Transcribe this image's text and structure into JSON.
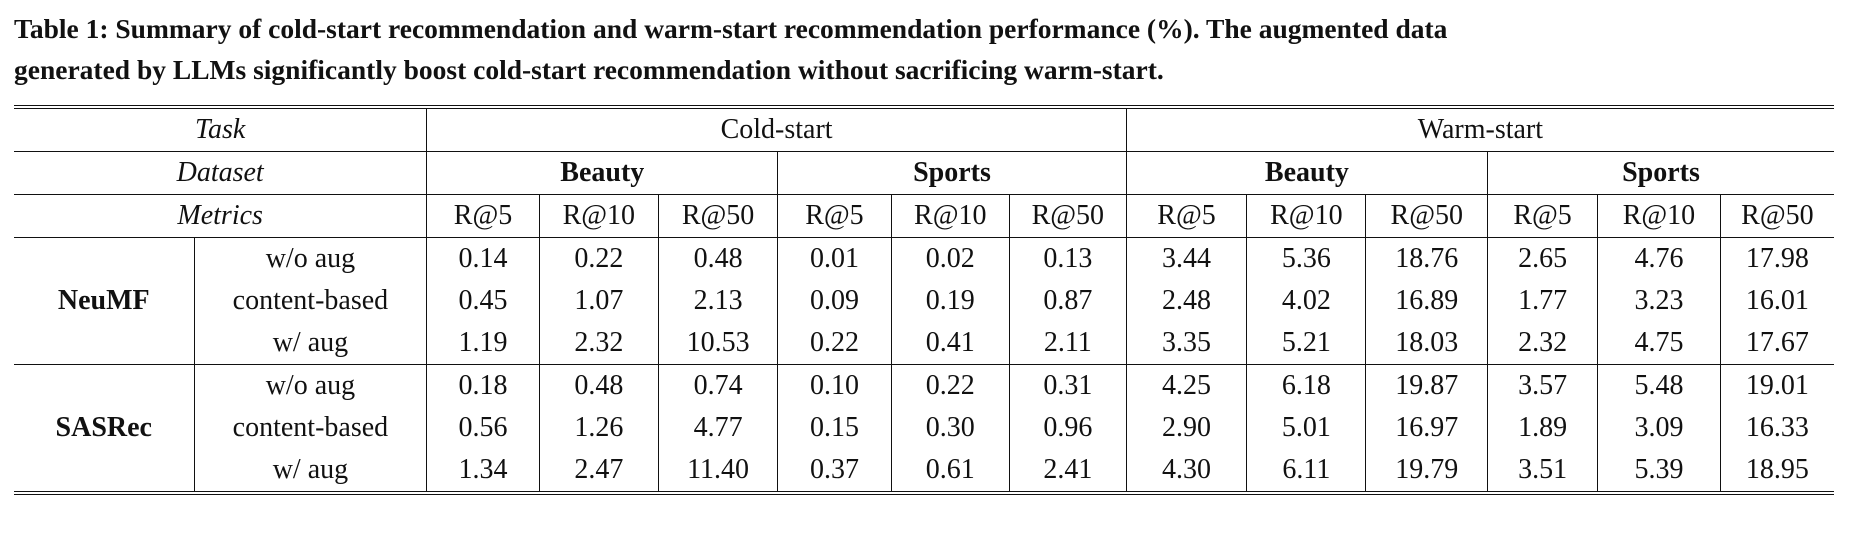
{
  "caption": "Table 1: Summary of cold-start recommendation and warm-start recommendation performance (%). The augmented data generated by LLMs significantly boost cold-start recommendation without sacrificing warm-start.",
  "caption_lines": [
    "Table 1: Summary of cold-start recommendation and warm-start recommendation performance (%). The augmented data",
    "generated by LLMs significantly boost cold-start recommendation without sacrificing warm-start."
  ],
  "header": {
    "task_label": "Task",
    "dataset_label": "Dataset",
    "metrics_label": "Metrics",
    "tasks": [
      "Cold-start",
      "Warm-start"
    ],
    "datasets": [
      "Beauty",
      "Sports",
      "Beauty",
      "Sports"
    ],
    "metrics": [
      "R@5",
      "R@10",
      "R@50",
      "R@5",
      "R@10",
      "R@50",
      "R@5",
      "R@10",
      "R@50",
      "R@5",
      "R@10",
      "R@50"
    ]
  },
  "groups": [
    {
      "model": "NeuMF",
      "rows": [
        {
          "variant": "w/o aug",
          "values": [
            "0.14",
            "0.22",
            "0.48",
            "0.01",
            "0.02",
            "0.13",
            "3.44",
            "5.36",
            "18.76",
            "2.65",
            "4.76",
            "17.98"
          ]
        },
        {
          "variant": "content-based",
          "values": [
            "0.45",
            "1.07",
            "2.13",
            "0.09",
            "0.19",
            "0.87",
            "2.48",
            "4.02",
            "16.89",
            "1.77",
            "3.23",
            "16.01"
          ]
        },
        {
          "variant": "w/ aug",
          "values": [
            "1.19",
            "2.32",
            "10.53",
            "0.22",
            "0.41",
            "2.11",
            "3.35",
            "5.21",
            "18.03",
            "2.32",
            "4.75",
            "17.67"
          ]
        }
      ]
    },
    {
      "model": "SASRec",
      "rows": [
        {
          "variant": "w/o aug",
          "values": [
            "0.18",
            "0.48",
            "0.74",
            "0.10",
            "0.22",
            "0.31",
            "4.25",
            "6.18",
            "19.87",
            "3.57",
            "5.48",
            "19.01"
          ]
        },
        {
          "variant": "content-based",
          "values": [
            "0.56",
            "1.26",
            "4.77",
            "0.15",
            "0.30",
            "0.96",
            "2.90",
            "5.01",
            "16.97",
            "1.89",
            "3.09",
            "16.33"
          ]
        },
        {
          "variant": "w/ aug",
          "values": [
            "1.34",
            "2.47",
            "11.40",
            "0.37",
            "0.61",
            "2.41",
            "4.30",
            "6.11",
            "19.79",
            "3.51",
            "5.39",
            "18.95"
          ]
        }
      ]
    }
  ]
}
